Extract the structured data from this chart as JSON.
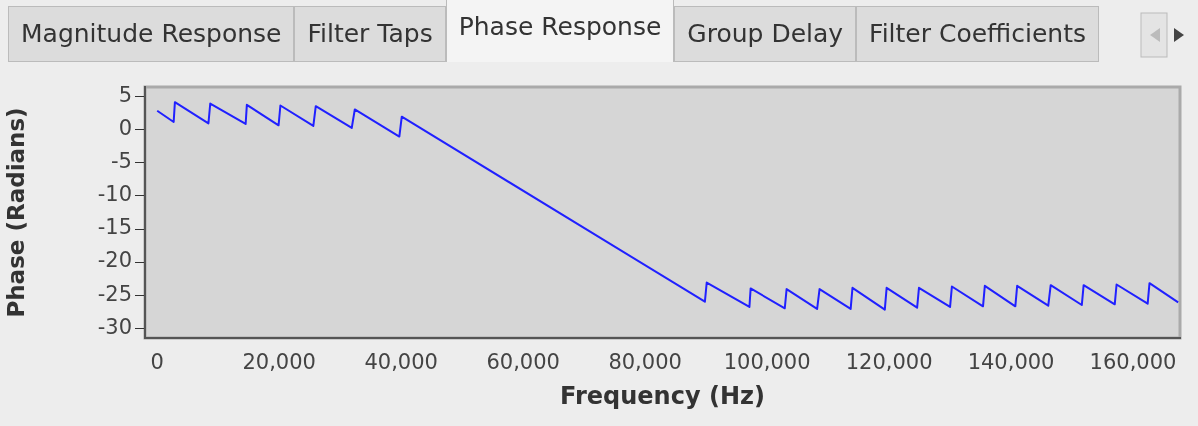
{
  "chart_data": {
    "type": "line",
    "xlabel": "Frequency (Hz)",
    "ylabel": "Phase (Radians)",
    "annotations": [
      "Magnitude Response",
      "Filter Taps",
      "Phase Response",
      "Group Delay",
      "Filter Coefficients"
    ],
    "xlim": [
      -2000,
      167700
    ],
    "xticks": [
      {
        "value": 0,
        "label": "0"
      },
      {
        "value": 20000,
        "label": "20,000"
      },
      {
        "value": 40000,
        "label": "40,000"
      },
      {
        "value": 60000,
        "label": "60,000"
      },
      {
        "value": 80000,
        "label": "80,000"
      },
      {
        "value": 100000,
        "label": "100,000"
      },
      {
        "value": 120000,
        "label": "120,000"
      },
      {
        "value": 140000,
        "label": "140,000"
      },
      {
        "value": 160000,
        "label": "160,000"
      }
    ],
    "ylim": [
      -31.5,
      6.5
    ],
    "yticks": [
      5,
      0,
      -5,
      -10,
      -15,
      -20,
      -25,
      -30
    ],
    "grid": false,
    "legend": false,
    "marker": "none",
    "line_style": "solid",
    "series": [
      {
        "color": "#2020ff",
        "x": [
          0,
          2700,
          2900,
          8400,
          8700,
          14500,
          14700,
          19900,
          20200,
          25600,
          26000,
          31900,
          32400,
          39700,
          40100,
          89800,
          90100,
          97100,
          97300,
          102900,
          103200,
          108200,
          108600,
          113700,
          114000,
          119300,
          119600,
          124600,
          124900,
          130000,
          130300,
          135400,
          135700,
          140700,
          141000,
          146100,
          146500,
          151600,
          151900,
          157000,
          157300,
          162400,
          162700,
          167400
        ],
        "values": [
          2.9,
          1.2,
          4.2,
          1.0,
          4.0,
          0.9,
          3.8,
          0.7,
          3.7,
          0.6,
          3.6,
          0.3,
          3.1,
          -1.0,
          2.0,
          -26.0,
          -23.1,
          -26.8,
          -24.0,
          -27.0,
          -24.1,
          -27.1,
          -24.1,
          -27.1,
          -23.9,
          -27.2,
          -23.9,
          -26.9,
          -23.9,
          -26.8,
          -23.7,
          -26.7,
          -23.6,
          -26.7,
          -23.6,
          -26.6,
          -23.5,
          -26.5,
          -23.5,
          -26.4,
          -23.4,
          -26.3,
          -23.2,
          -26.1
        ]
      }
    ]
  }
}
